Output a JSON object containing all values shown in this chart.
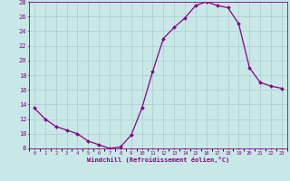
{
  "x": [
    0,
    1,
    2,
    3,
    4,
    5,
    6,
    7,
    8,
    9,
    10,
    11,
    12,
    13,
    14,
    15,
    16,
    17,
    18,
    19,
    20,
    21,
    22,
    23
  ],
  "y": [
    13.5,
    12.0,
    11.0,
    10.5,
    10.0,
    9.0,
    8.5,
    8.0,
    8.2,
    9.8,
    13.5,
    18.5,
    23.0,
    24.5,
    25.8,
    27.5,
    28.0,
    27.5,
    27.2,
    25.0,
    19.0,
    17.0,
    16.5,
    16.2
  ],
  "xlim": [
    -0.5,
    23.5
  ],
  "ylim": [
    8,
    28
  ],
  "yticks": [
    8,
    10,
    12,
    14,
    16,
    18,
    20,
    22,
    24,
    26,
    28
  ],
  "xtick_labels": [
    "0",
    "1",
    "2",
    "3",
    "4",
    "5",
    "6",
    "7",
    "8",
    "9",
    "10",
    "11",
    "12",
    "13",
    "14",
    "15",
    "16",
    "17",
    "18",
    "19",
    "20",
    "21",
    "22",
    "23"
  ],
  "xlabel": "Windchill (Refroidissement éolien,°C)",
  "line_color": "#880088",
  "marker_color": "#880088",
  "bg_color": "#c8e8e8",
  "grid_color": "#aacccc",
  "tick_label_color": "#880088",
  "axis_label_color": "#880088"
}
